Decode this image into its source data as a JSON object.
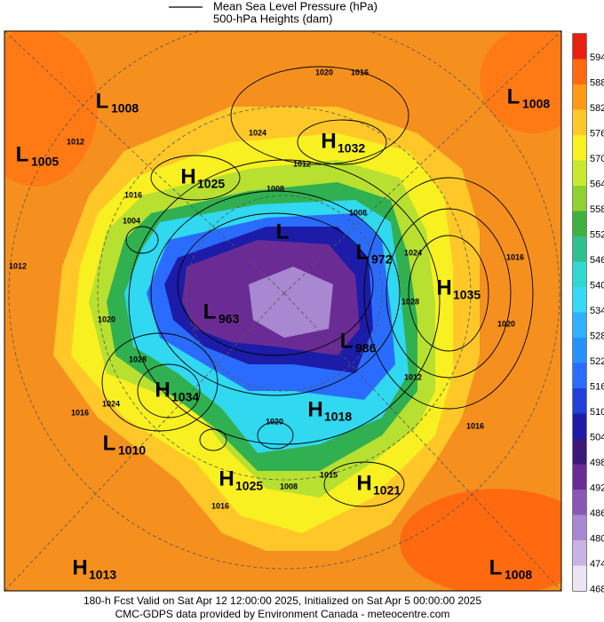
{
  "legend": {
    "line1": "Mean Sea Level Pressure (hPa)",
    "line2": "500-hPa Heights (dam)"
  },
  "centers": [
    {
      "type": "L",
      "value": "1008"
    },
    {
      "type": "L",
      "value": "1005"
    },
    {
      "type": "H",
      "value": "1032"
    },
    {
      "type": "H",
      "value": "1025"
    },
    {
      "type": "L",
      "value": "1008"
    },
    {
      "type": "L",
      "value": "972"
    },
    {
      "type": "L",
      "value": "963"
    },
    {
      "type": "H",
      "value": "1035"
    },
    {
      "type": "H",
      "value": "1034"
    },
    {
      "type": "L",
      "value": "986"
    },
    {
      "type": "H",
      "value": "1018"
    },
    {
      "type": "L",
      "value": "1010"
    },
    {
      "type": "H",
      "value": "1025"
    },
    {
      "type": "H",
      "value": "1021"
    },
    {
      "type": "H",
      "value": "1013"
    },
    {
      "type": "L",
      "value": "1008"
    },
    {
      "type": "L"
    }
  ],
  "contour_labels": [
    "1020",
    "1016",
    "1024",
    "1012",
    "1008",
    "1016",
    "1004",
    "1012",
    "1016",
    "1020",
    "1028",
    "1020",
    "1028",
    "1024",
    "1016",
    "1012",
    "1016",
    "1015",
    "1008",
    "1016",
    "1012",
    "1024",
    "1008",
    "1020"
  ],
  "colorbar": {
    "labels": [
      594,
      588,
      582,
      576,
      570,
      564,
      558,
      552,
      546,
      540,
      534,
      528,
      522,
      516,
      510,
      504,
      498,
      492,
      486,
      480,
      474,
      468
    ],
    "colors": [
      "#e82010",
      "#ff6a10",
      "#ff9a18",
      "#ffc828",
      "#f8f020",
      "#c8e830",
      "#90d030",
      "#40b040",
      "#30c090",
      "#30d8d0",
      "#38d8f8",
      "#30b0ff",
      "#2890ff",
      "#2a6cff",
      "#2040d8",
      "#1c1ca8",
      "#3a1878",
      "#6a2c94",
      "#8a58b4",
      "#a888d0",
      "#c8b4e4",
      "#ece4f4"
    ]
  },
  "footer": {
    "line1": "180-h Fcst Valid on Sat Apr 12 12:00:00 2025, Initialized on Sat Apr  5 00:00:00 2025",
    "line2": "CMC-GDPS data provided by Environment Canada - meteocentre.com"
  }
}
